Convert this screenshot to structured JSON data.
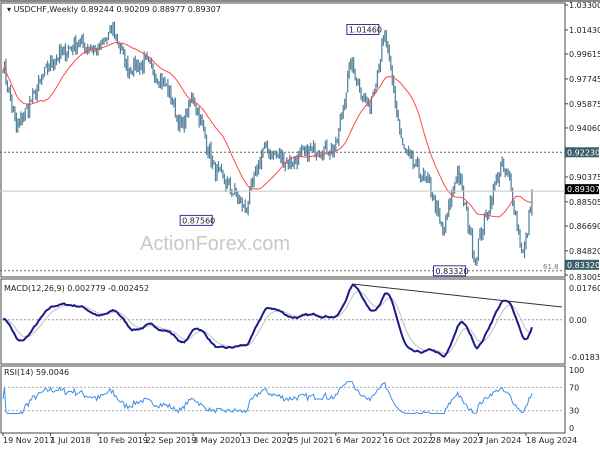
{
  "watermark": "ActionForex.com",
  "chart_data": [
    {
      "type": "ohlc",
      "title": "USDCHF,Weekly",
      "ohlc_last": {
        "open": "0.89244",
        "high": "0.90209",
        "low": "0.88977",
        "close": "0.89307"
      },
      "overlay": "moving average (red)",
      "y_ticks": [
        "1.03300",
        "1.01430",
        "0.99615",
        "0.97745",
        "0.95875",
        "0.94060",
        "0.90375",
        "0.88505",
        "0.86690",
        "0.84820",
        "0.83005"
      ],
      "ylim": [
        0.83005,
        1.033
      ],
      "levels": [
        {
          "value": 0.9223,
          "label": "0.92230",
          "style": "dashed"
        },
        {
          "value": 0.8332,
          "label": "0.83320",
          "style": "dashed"
        },
        {
          "value": 0.89307,
          "label": "0.89307",
          "style": "current"
        }
      ],
      "annotations": [
        {
          "date": "2022-10-23",
          "value": 1.0146,
          "label": "1.01460"
        },
        {
          "date": "2021-01-03",
          "value": 0.8756,
          "label": "0.87560"
        },
        {
          "date": "2023-12-24",
          "value": 0.8332,
          "label": "0.83320"
        }
      ],
      "fib_label": "61.8",
      "x_ticks": [
        "19 Nov 2017",
        "1 Jul 2018",
        "10 Feb 2019",
        "22 Sep 2019",
        "3 May 2020",
        "13 Dec 2020",
        "25 Jul 2021",
        "6 Mar 2022",
        "16 Oct 2022",
        "28 May 2023",
        "7 Jan 2024",
        "18 Aug 2024"
      ],
      "price_path": [
        [
          "2017-11-19",
          0.99
        ],
        [
          "2018-01-21",
          0.94
        ],
        [
          "2018-04-15",
          0.965
        ],
        [
          "2018-07-01",
          0.99
        ],
        [
          "2018-11-11",
          1.005
        ],
        [
          "2019-02-10",
          0.998
        ],
        [
          "2019-04-21",
          1.015
        ],
        [
          "2019-07-01",
          0.985
        ],
        [
          "2019-09-22",
          0.99
        ],
        [
          "2020-01-05",
          0.97
        ],
        [
          "2020-03-08",
          0.94
        ],
        [
          "2020-05-03",
          0.965
        ],
        [
          "2020-08-09",
          0.91
        ],
        [
          "2020-12-13",
          0.885
        ],
        [
          "2021-01-03",
          0.878
        ],
        [
          "2021-03-28",
          0.925
        ],
        [
          "2021-07-25",
          0.915
        ],
        [
          "2021-12-05",
          0.925
        ],
        [
          "2022-03-06",
          0.925
        ],
        [
          "2022-05-15",
          0.99
        ],
        [
          "2022-08-07",
          0.955
        ],
        [
          "2022-10-23",
          1.01
        ],
        [
          "2023-01-15",
          0.925
        ],
        [
          "2023-05-28",
          0.895
        ],
        [
          "2023-07-23",
          0.86
        ],
        [
          "2023-10-01",
          0.91
        ],
        [
          "2023-12-24",
          0.84
        ],
        [
          "2024-01-07",
          0.855
        ],
        [
          "2024-04-21",
          0.912
        ],
        [
          "2024-06-02",
          0.9
        ],
        [
          "2024-08-04",
          0.845
        ],
        [
          "2024-08-18",
          0.855
        ],
        [
          "2024-09-15",
          0.893
        ]
      ],
      "colors": {
        "bars": "#4f7f99",
        "ma": "#ff4a4a",
        "label_bg": "#3a5f6a"
      }
    },
    {
      "type": "line",
      "title": "MACD(12,26,9) 0.002779 -0.002452",
      "y_ticks": [
        "0.017603",
        "0.00",
        "-0.01834"
      ],
      "ylim": [
        -0.01834,
        0.017603
      ],
      "series_colors": {
        "macd": "#1a1a8c",
        "signal": "#c0c0c0"
      }
    },
    {
      "type": "line",
      "title": "RSI(14) 59.0046",
      "y_ticks": [
        "100",
        "70",
        "30",
        "0"
      ],
      "ylim": [
        0,
        100
      ],
      "levels": [
        70,
        30
      ],
      "color": "#3d8ee8"
    }
  ]
}
